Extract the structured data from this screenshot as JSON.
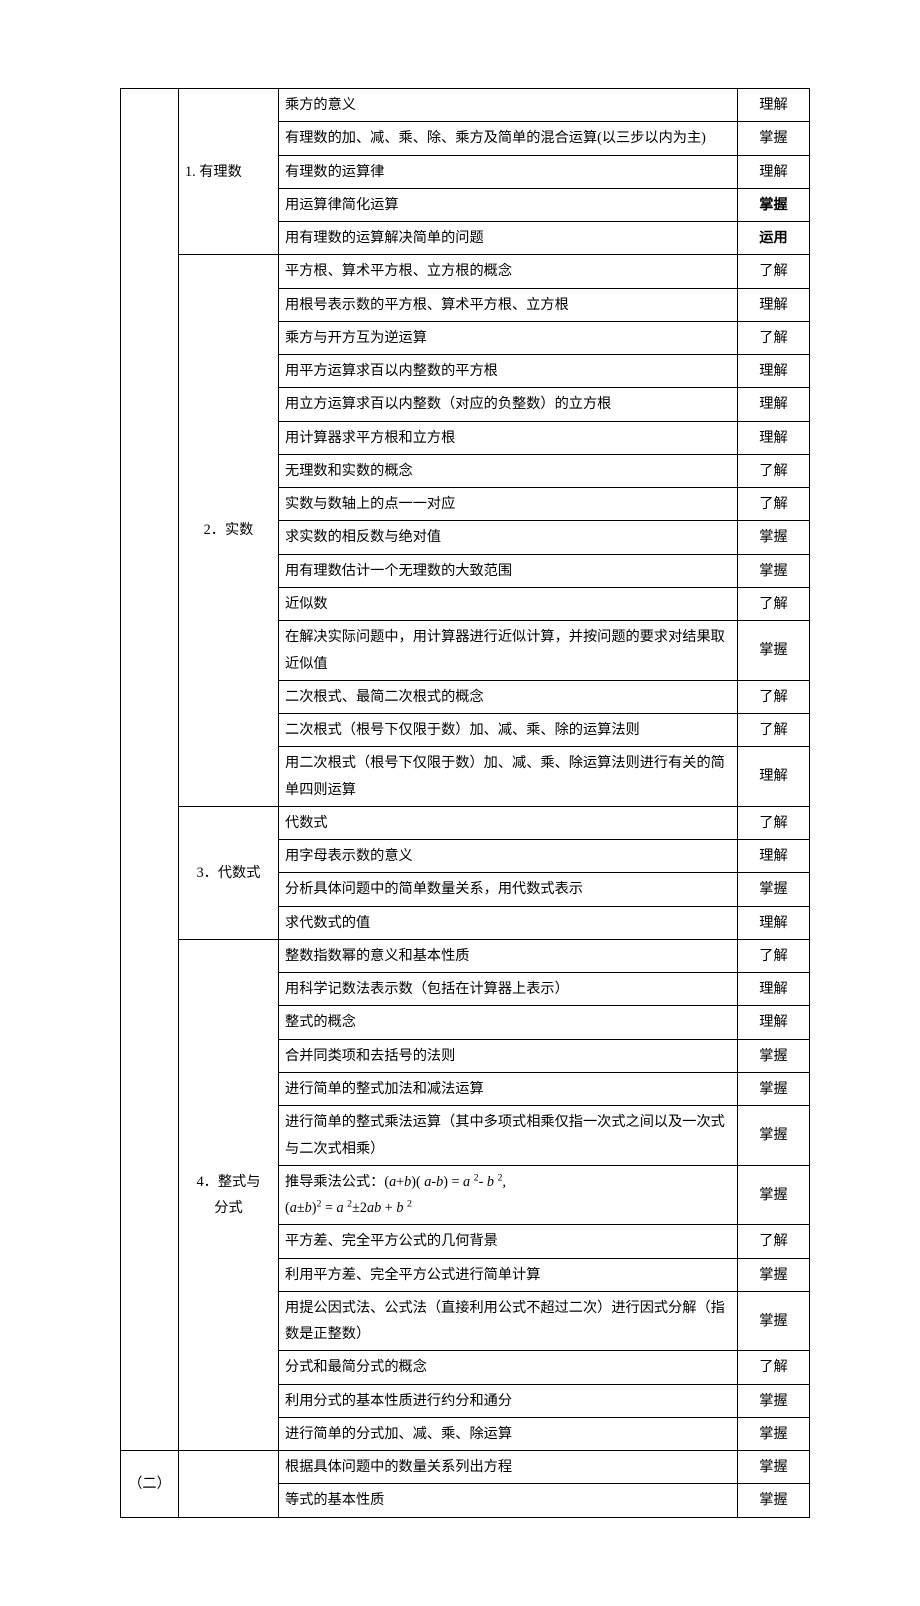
{
  "col1_section2": "（二）",
  "col2": {
    "s1": "1. 有理数",
    "s2": "2．实数",
    "s3": "3．代数式",
    "s4_line1": "4．整式与",
    "s4_line2": "分式"
  },
  "rows": [
    {
      "desc": "乘方的意义",
      "level": "理解",
      "bold": false
    },
    {
      "desc": "有理数的加、减、乘、除、乘方及简单的混合运算(以三步以内为主)",
      "level": "掌握",
      "bold": false
    },
    {
      "desc": "有理数的运算律",
      "level": "理解",
      "bold": false
    },
    {
      "desc": "用运算律简化运算",
      "level": "掌握",
      "bold": true
    },
    {
      "desc": "用有理数的运算解决简单的问题",
      "level": "运用",
      "bold": true
    },
    {
      "desc": "平方根、算术平方根、立方根的概念",
      "level": "了解",
      "bold": false
    },
    {
      "desc": "用根号表示数的平方根、算术平方根、立方根",
      "level": "理解",
      "bold": false
    },
    {
      "desc": "乘方与开方互为逆运算",
      "level": "了解",
      "bold": false
    },
    {
      "desc": "用平方运算求百以内整数的平方根",
      "level": "理解",
      "bold": false
    },
    {
      "desc": "用立方运算求百以内整数（对应的负整数）的立方根",
      "level": "理解",
      "bold": false
    },
    {
      "desc": "用计算器求平方根和立方根",
      "level": "理解",
      "bold": false
    },
    {
      "desc": "无理数和实数的概念",
      "level": "了解",
      "bold": false
    },
    {
      "desc": "实数与数轴上的点一一对应",
      "level": "了解",
      "bold": false
    },
    {
      "desc": "求实数的相反数与绝对值",
      "level": "掌握",
      "bold": false
    },
    {
      "desc": "用有理数估计一个无理数的大致范围",
      "level": "掌握",
      "bold": false
    },
    {
      "desc": "近似数",
      "level": "了解",
      "bold": false
    },
    {
      "desc": "在解决实际问题中，用计算器进行近似计算，并按问题的要求对结果取近似值",
      "level": "掌握",
      "bold": false
    },
    {
      "desc": "二次根式、最简二次根式的概念",
      "level": "了解",
      "bold": false
    },
    {
      "desc": "二次根式（根号下仅限于数）加、减、乘、除的运算法则",
      "level": "了解",
      "bold": false
    },
    {
      "desc": "用二次根式（根号下仅限于数）加、减、乘、除运算法则进行有关的简单四则运算",
      "level": "理解",
      "bold": false
    },
    {
      "desc": "代数式",
      "level": "了解",
      "bold": false
    },
    {
      "desc": "用字母表示数的意义",
      "level": "理解",
      "bold": false
    },
    {
      "desc": "分析具体问题中的简单数量关系，用代数式表示",
      "level": "掌握",
      "bold": false
    },
    {
      "desc": "求代数式的值",
      "level": "理解",
      "bold": false
    },
    {
      "desc": "整数指数幂的意义和基本性质",
      "level": "了解",
      "bold": false
    },
    {
      "desc": "用科学记数法表示数（包括在计算器上表示）",
      "level": "理解",
      "bold": false
    },
    {
      "desc": "整式的概念",
      "level": "理解",
      "bold": false
    },
    {
      "desc": "合并同类项和去括号的法则",
      "level": "掌握",
      "bold": false
    },
    {
      "desc": "进行简单的整式加法和减法运算",
      "level": "掌握",
      "bold": false
    },
    {
      "desc": "进行简单的整式乘法运算（其中多项式相乘仅指一次式之间以及一次式与二次式相乘）",
      "level": "掌握",
      "bold": false
    },
    {
      "desc": "FORMULA_ROW",
      "level": "掌握",
      "bold": false
    },
    {
      "desc": "平方差、完全平方公式的几何背景",
      "level": "了解",
      "bold": false
    },
    {
      "desc": "利用平方差、完全平方公式进行简单计算",
      "level": "掌握",
      "bold": false
    },
    {
      "desc": "用提公因式法、公式法（直接利用公式不超过二次）进行因式分解（指数是正整数）",
      "level": "掌握",
      "bold": false
    },
    {
      "desc": "分式和最简分式的概念",
      "level": "了解",
      "bold": false
    },
    {
      "desc": "利用分式的基本性质进行约分和通分",
      "level": "掌握",
      "bold": false
    },
    {
      "desc": "进行简单的分式加、减、乘、除运算",
      "level": "掌握",
      "bold": false
    },
    {
      "desc": "根据具体问题中的数量关系列出方程",
      "level": "掌握",
      "bold": false
    },
    {
      "desc": "等式的基本性质",
      "level": "掌握",
      "bold": false
    }
  ],
  "formula": {
    "prefix": "推导乘法公式："
  }
}
